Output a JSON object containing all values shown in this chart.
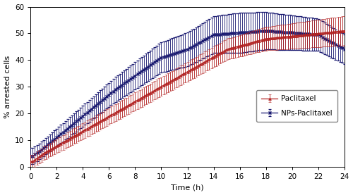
{
  "title": "",
  "xlabel": "Time (h)",
  "ylabel": "% arrested cells",
  "xlim": [
    0,
    24
  ],
  "ylim": [
    0,
    60
  ],
  "xticks": [
    0,
    2,
    4,
    6,
    8,
    10,
    12,
    14,
    16,
    18,
    20,
    22,
    24
  ],
  "yticks": [
    0,
    10,
    20,
    30,
    40,
    50,
    60
  ],
  "paclitaxel_color": "#b22222",
  "nps_color": "#191970",
  "figsize": [
    5.0,
    2.77
  ],
  "dpi": 100
}
